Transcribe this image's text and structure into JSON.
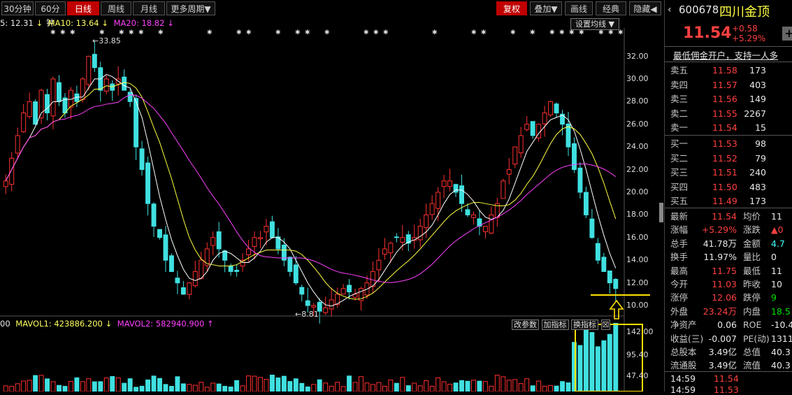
{
  "tabs": [
    "30分钟",
    "60分钟",
    "日线",
    "周线",
    "月线",
    "更多周期▼"
  ],
  "active_tab": "日线",
  "toolbar_right": [
    "复权",
    "叠加▼",
    "画线",
    "经典",
    "隐藏◀"
  ],
  "ma_line": {
    "ma5": "5: 12.31",
    "ma10": "MA10: 13.64",
    "ma20": "MA20: 18.82"
  },
  "set_ma_button": "设置均线 ▼",
  "high_label": "33.85",
  "low_label": "8.81",
  "price_axis": [
    "32.00",
    "30.00",
    "28.00",
    "26.00",
    "24.00",
    "22.00",
    "20.00",
    "18.00",
    "16.00",
    "14.00",
    "12.00",
    "10.00"
  ],
  "vol_line": {
    "vol": "00",
    "mavol1": "MAVOL1: 423886.200",
    "mavol2": "MAVOL2: 582940.900"
  },
  "vol_buttons": [
    "改参数",
    "加指标",
    "换指标",
    "☒"
  ],
  "vol_axis": [
    "142.00",
    "95.40",
    "47.40"
  ],
  "stock": {
    "code": "600678",
    "name": "四川金顶",
    "price": "11.54",
    "change": "+0.58",
    "pct": "+5.29%"
  },
  "ad_text": "最低佣金开户，支持一人多",
  "asks": [
    {
      "label": "卖五",
      "price": "11.58",
      "vol": "173"
    },
    {
      "label": "卖四",
      "price": "11.57",
      "vol": "403"
    },
    {
      "label": "卖三",
      "price": "11.56",
      "vol": "149"
    },
    {
      "label": "卖二",
      "price": "11.55",
      "vol": "2267"
    },
    {
      "label": "卖一",
      "price": "11.54",
      "vol": "15"
    }
  ],
  "bids": [
    {
      "label": "买一",
      "price": "11.53",
      "vol": "98"
    },
    {
      "label": "买二",
      "price": "11.52",
      "vol": "79"
    },
    {
      "label": "买三",
      "price": "11.51",
      "vol": "240"
    },
    {
      "label": "买四",
      "price": "11.50",
      "vol": "483"
    },
    {
      "label": "买五",
      "price": "11.49",
      "vol": "173"
    }
  ],
  "quote": [
    {
      "l1": "最新",
      "v1": "11.54",
      "l2": "均价",
      "v2": "11"
    },
    {
      "l1": "涨幅",
      "v1": "+5.29%",
      "l2": "涨跌",
      "v2": "▲0"
    },
    {
      "l1": "总手",
      "v1": "41.78万",
      "l2": "金额",
      "v2": "4.7"
    },
    {
      "l1": "换手",
      "v1": "11.97%",
      "l2": "量比",
      "v2": "0"
    },
    {
      "l1": "最高",
      "v1": "11.75",
      "l2": "最低",
      "v2": "11"
    },
    {
      "l1": "今开",
      "v1": "11.03",
      "l2": "昨收",
      "v2": "10"
    },
    {
      "l1": "涨停",
      "v1": "12.06",
      "l2": "跌停",
      "v2": "9"
    },
    {
      "l1": "外盘",
      "v1": "23.24万",
      "l2": "内盘",
      "v2": "18.5"
    },
    {
      "l1": "净资产",
      "v1": "0.06",
      "l2": "ROE",
      "v2": "-10.4"
    },
    {
      "l1": "收益(三)",
      "v1": "-0.007",
      "l2": "PE(动)",
      "v2": "1311"
    },
    {
      "l1": "总股本",
      "v1": "3.49亿",
      "l2": "总值",
      "v2": "40.3"
    },
    {
      "l1": "流通股",
      "v1": "3.49亿",
      "l2": "流值",
      "v2": "40.3"
    }
  ],
  "tick": {
    "time": "14:59",
    "price": "11.54",
    "time2": "14:59",
    "price2": "11.53"
  },
  "chart_data": {
    "type": "candlestick",
    "ylim": [
      9.2,
      34.5
    ],
    "closes": [
      21,
      23,
      25,
      27,
      28,
      26,
      29,
      27,
      30,
      28,
      27,
      29,
      28,
      30,
      32,
      31,
      29,
      30,
      29,
      30,
      29,
      28,
      24,
      22,
      19,
      17,
      16,
      14,
      13,
      12,
      11,
      12,
      13,
      14,
      15,
      16,
      15,
      14,
      13,
      13,
      14,
      15,
      16,
      16,
      17,
      16,
      15,
      14,
      13,
      12,
      11,
      10,
      10,
      9.5,
      9.8,
      10.5,
      11,
      11.5,
      11.2,
      11,
      11.5,
      12,
      13,
      14,
      15,
      15.5,
      16,
      16,
      15.5,
      16,
      17,
      18,
      19,
      20,
      21,
      21,
      20,
      19,
      18,
      18,
      17,
      17,
      18,
      19,
      21,
      22,
      24,
      25,
      26,
      25,
      26,
      27,
      28,
      27,
      26,
      24,
      22,
      20,
      18,
      16,
      14,
      13,
      12,
      11.5
    ]
  }
}
